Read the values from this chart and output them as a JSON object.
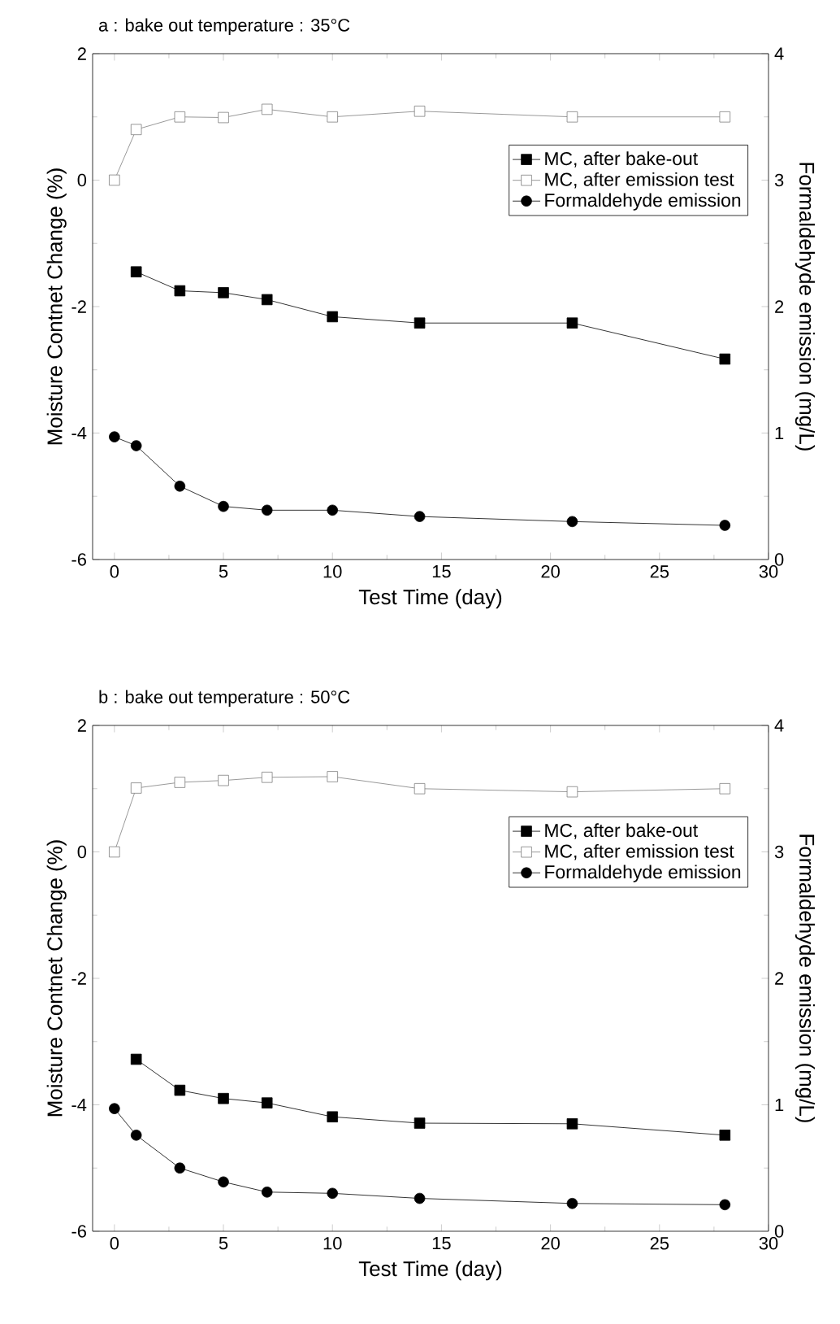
{
  "chart_data": [
    {
      "type": "line",
      "title": "a : bake out temperature : 35°C",
      "xlabel": "Test Time (day)",
      "ylabel": "Moisture Contnet Change (%)",
      "y2label": "Formaldehyde emission (mg/L)",
      "x": [
        0,
        1,
        3,
        5,
        7,
        10,
        14,
        21,
        28
      ],
      "series": [
        {
          "name": "MC, after bake-out",
          "color": "#000000",
          "marker": "square",
          "x": [
            1,
            3,
            5,
            7,
            10,
            14,
            21,
            28
          ],
          "values": [
            -1.45,
            -1.75,
            -1.78,
            -1.89,
            -2.16,
            -2.26,
            -2.26,
            -2.83
          ]
        },
        {
          "name": "MC, after emission test",
          "color": "#7f7f7f",
          "marker": "square",
          "values": [
            0,
            0.8,
            1.0,
            0.99,
            1.12,
            1.0,
            1.09,
            1.0,
            1.0
          ]
        },
        {
          "name": "Formaldehyde emission",
          "color": "#000000",
          "marker": "circle",
          "axis": "y2",
          "values": [
            0.97,
            0.9,
            0.58,
            0.42,
            0.39,
            0.39,
            0.34,
            0.3,
            0.27
          ]
        }
      ],
      "xlim": [
        -1,
        30
      ],
      "xticks": [
        0,
        5,
        10,
        15,
        20,
        25,
        30
      ],
      "ylim": [
        -6,
        2
      ],
      "yticks": [
        -6,
        -4,
        -2,
        0,
        2
      ],
      "y2lim": [
        0,
        4
      ],
      "y2ticks": [
        0,
        1,
        2,
        3,
        4
      ],
      "legend": "top right",
      "grid": false,
      "line_style": "solid"
    },
    {
      "type": "line",
      "title": "b : bake out temperature : 50°C",
      "xlabel": "Test Time (day)",
      "ylabel": "Moisture Contnet Change (%)",
      "y2label": "Formaldehyde emission (mg/L)",
      "x": [
        0,
        1,
        3,
        5,
        7,
        10,
        14,
        21,
        28
      ],
      "series": [
        {
          "name": "MC, after bake-out",
          "color": "#000000",
          "marker": "square",
          "x": [
            1,
            3,
            5,
            7,
            10,
            14,
            21,
            28
          ],
          "values": [
            -3.28,
            -3.77,
            -3.9,
            -3.97,
            -4.19,
            -4.29,
            -4.3,
            -4.48
          ]
        },
        {
          "name": "MC, after emission test",
          "color": "#7f7f7f",
          "marker": "square",
          "values": [
            0,
            1.01,
            1.1,
            1.13,
            1.18,
            1.19,
            1.0,
            0.95,
            1.0
          ]
        },
        {
          "name": "Formaldehyde emission",
          "color": "#000000",
          "marker": "circle",
          "axis": "y2",
          "values": [
            0.97,
            0.76,
            0.5,
            0.39,
            0.31,
            0.3,
            0.26,
            0.22,
            0.21
          ]
        }
      ],
      "xlim": [
        -1,
        30
      ],
      "xticks": [
        0,
        5,
        10,
        15,
        20,
        25,
        30
      ],
      "ylim": [
        -6,
        2
      ],
      "yticks": [
        -6,
        -4,
        -2,
        0,
        2
      ],
      "y2lim": [
        0,
        4
      ],
      "y2ticks": [
        0,
        1,
        2,
        3,
        4
      ],
      "legend": "top right",
      "grid": false,
      "line_style": "solid"
    }
  ]
}
